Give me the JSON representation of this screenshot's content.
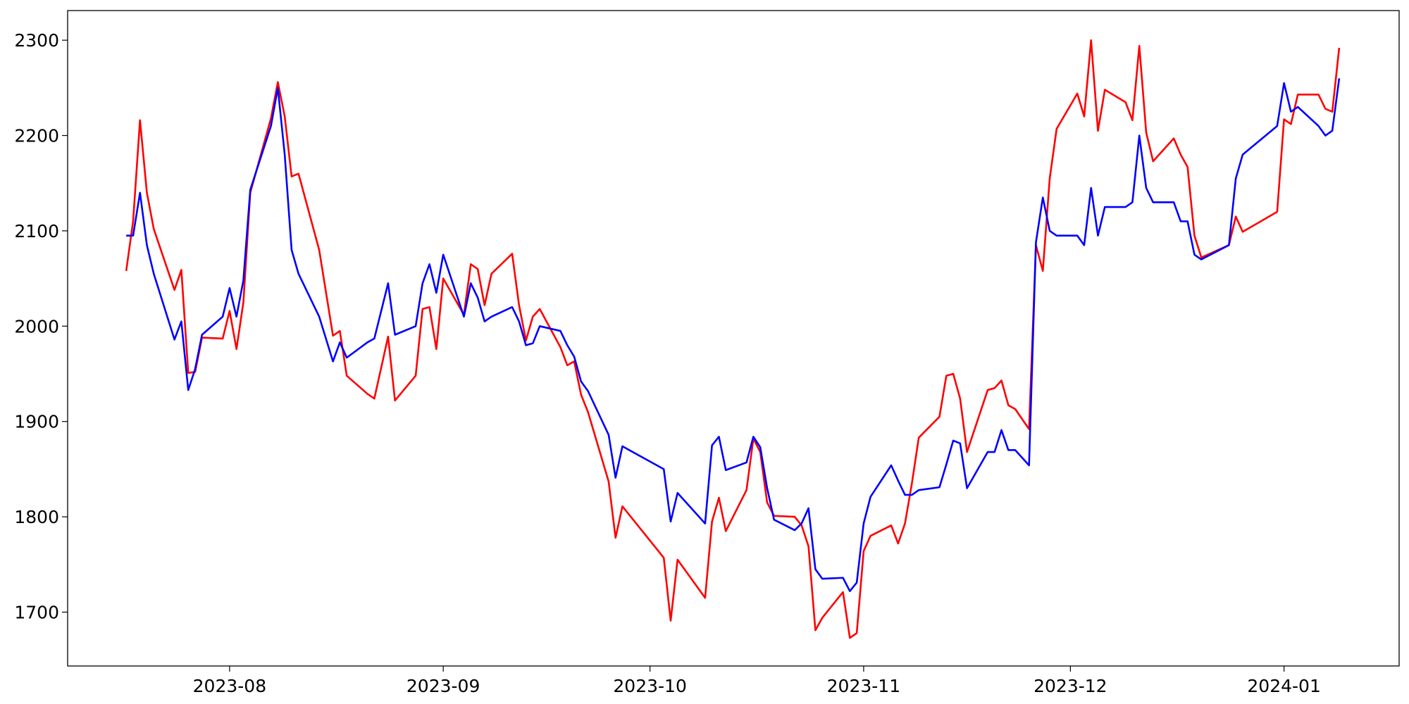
{
  "chart_data": {
    "type": "line",
    "x": [
      19555,
      19556,
      19557,
      19558,
      19559,
      19562,
      19563,
      19564,
      19565,
      19566,
      19569,
      19570,
      19571,
      19572,
      19573,
      19576,
      19577,
      19578,
      19579,
      19580,
      19583,
      19585,
      19586,
      19587,
      19590,
      19591,
      19593,
      19594,
      19597,
      19598,
      19599,
      19600,
      19601,
      19604,
      19605,
      19606,
      19607,
      19608,
      19611,
      19612,
      19613,
      19614,
      19615,
      19618,
      19619,
      19620,
      19621,
      19622,
      19625,
      19626,
      19627,
      19633,
      19634,
      19635,
      19639,
      19640,
      19641,
      19642,
      19645,
      19646,
      19647,
      19648,
      19649,
      19652,
      19653,
      19654,
      19655,
      19656,
      19659,
      19660,
      19661,
      19662,
      19663,
      19666,
      19667,
      19668,
      19669,
      19670,
      19673,
      19674,
      19675,
      19676,
      19677,
      19680,
      19681,
      19682,
      19683,
      19684,
      19686,
      19687,
      19688,
      19689,
      19690,
      19693,
      19694,
      19695,
      19696,
      19697,
      19700,
      19701,
      19702,
      19703,
      19704,
      19707,
      19708,
      19709,
      19710,
      19711,
      19715,
      19716,
      19717,
      19722,
      19723,
      19724,
      19725,
      19728,
      19729,
      19730,
      19731
    ],
    "series": [
      {
        "color": "#ff0000",
        "values": [
          2058,
          2110,
          2216,
          2140,
          2102,
          2038,
          2059,
          1951,
          1952,
          1988,
          1987,
          2016,
          1976,
          2025,
          2140,
          2218,
          2256,
          2220,
          2157,
          2160,
          2080,
          1990,
          1995,
          1948,
          1929,
          1924,
          1989,
          1922,
          1948,
          2018,
          2020,
          1976,
          2050,
          2012,
          2065,
          2060,
          2022,
          2055,
          2076,
          2022,
          1985,
          2010,
          2018,
          1978,
          1959,
          1963,
          1928,
          1910,
          1837,
          1778,
          1811,
          1757,
          1691,
          1755,
          1715,
          1795,
          1820,
          1785,
          1828,
          1882,
          1868,
          1815,
          1801,
          1800,
          1791,
          1769,
          1681,
          1694,
          1721,
          1673,
          1678,
          1764,
          1780,
          1791,
          1772,
          1793,
          1835,
          1883,
          1905,
          1948,
          1950,
          1924,
          1868,
          1933,
          1935,
          1943,
          1917,
          1913,
          1892,
          2085,
          2058,
          2155,
          2207,
          2244,
          2220,
          2300,
          2205,
          2248,
          2235,
          2216,
          2294,
          2203,
          2173,
          2197,
          2180,
          2167,
          2095,
          2072,
          2085,
          2115,
          2099,
          2120,
          2217,
          2212,
          2243,
          2243,
          2228,
          2225,
          2292
        ]
      },
      {
        "color": "#0000ff",
        "values": [
          2095,
          2095,
          2140,
          2085,
          2055,
          1986,
          2005,
          1933,
          1955,
          1991,
          2010,
          2040,
          2010,
          2048,
          2143,
          2210,
          2250,
          2180,
          2080,
          2055,
          2010,
          1963,
          1983,
          1967,
          1983,
          1987,
          2045,
          1991,
          2000,
          2045,
          2065,
          2035,
          2075,
          2010,
          2045,
          2030,
          2005,
          2010,
          2020,
          2005,
          1980,
          1982,
          2000,
          1995,
          1980,
          1968,
          1942,
          1932,
          1886,
          1841,
          1874,
          1850,
          1795,
          1825,
          1793,
          1875,
          1884,
          1849,
          1857,
          1884,
          1873,
          1830,
          1797,
          1786,
          1793,
          1809,
          1745,
          1735,
          1736,
          1722,
          1731,
          1793,
          1821,
          1854,
          1838,
          1823,
          1823,
          1828,
          1831,
          1855,
          1880,
          1877,
          1830,
          1868,
          1868,
          1891,
          1870,
          1870,
          1854,
          2088,
          2135,
          2100,
          2095,
          2095,
          2085,
          2145,
          2095,
          2125,
          2125,
          2130,
          2200,
          2145,
          2130,
          2130,
          2110,
          2110,
          2075,
          2070,
          2085,
          2155,
          2180,
          2210,
          2255,
          2225,
          2230,
          2210,
          2200,
          2205,
          2260
        ]
      }
    ],
    "xlim": [
      19546.5,
      19739.7
    ],
    "xticks": [
      {
        "value": 19570,
        "label": "2023-08"
      },
      {
        "value": 19601,
        "label": "2023-09"
      },
      {
        "value": 19631,
        "label": "2023-10"
      },
      {
        "value": 19662,
        "label": "2023-11"
      },
      {
        "value": 19692,
        "label": "2023-12"
      },
      {
        "value": 19723,
        "label": "2024-01"
      }
    ],
    "ylim": [
      1643.5,
      2331.1
    ],
    "yticks": [
      1700,
      1800,
      1900,
      2000,
      2100,
      2200,
      2300
    ],
    "grid": false
  }
}
